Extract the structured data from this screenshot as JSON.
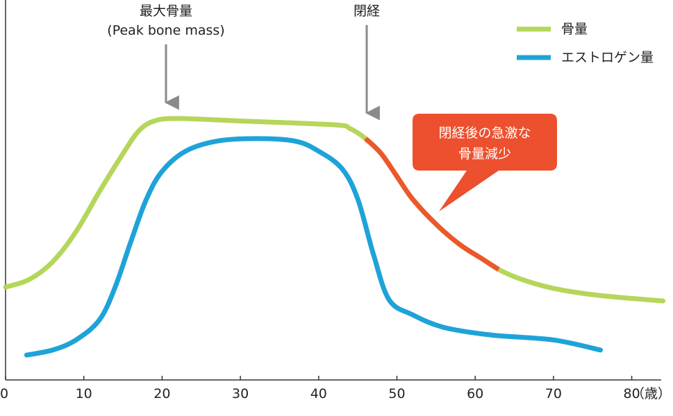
{
  "chart_data": {
    "type": "line",
    "xlabel": "",
    "ylabel": "",
    "x_unit": "（歳）",
    "xlim": [
      0,
      84
    ],
    "ylim": [
      0,
      100
    ],
    "xticks": [
      0,
      10,
      20,
      30,
      40,
      50,
      60,
      70,
      80
    ],
    "grid": false,
    "legend_position": "top-right",
    "series": [
      {
        "name": "骨量",
        "color": "#b5d65a",
        "points": [
          [
            0,
            30
          ],
          [
            3,
            33
          ],
          [
            6,
            40
          ],
          [
            9,
            52
          ],
          [
            12,
            68
          ],
          [
            15,
            83
          ],
          [
            17,
            92
          ],
          [
            19,
            96
          ],
          [
            22,
            97
          ],
          [
            30,
            96
          ],
          [
            42,
            94.5
          ],
          [
            44,
            93
          ],
          [
            46,
            89
          ],
          [
            48,
            83
          ],
          [
            50,
            74
          ],
          [
            52,
            65
          ],
          [
            55,
            55
          ],
          [
            58,
            47
          ],
          [
            61,
            41
          ],
          [
            63,
            37
          ],
          [
            66,
            33
          ],
          [
            70,
            29.5
          ],
          [
            75,
            27
          ],
          [
            80,
            25.5
          ],
          [
            84,
            24.5
          ]
        ]
      },
      {
        "name": "エストロゲン量",
        "color": "#1ea3d9",
        "points": [
          [
            2.7,
            3
          ],
          [
            6,
            5
          ],
          [
            9,
            9
          ],
          [
            12,
            17
          ],
          [
            14,
            30
          ],
          [
            16,
            48
          ],
          [
            18,
            65
          ],
          [
            20,
            76
          ],
          [
            23,
            84
          ],
          [
            27,
            88
          ],
          [
            32,
            89
          ],
          [
            37,
            88
          ],
          [
            40,
            84
          ],
          [
            43,
            77
          ],
          [
            45,
            65
          ],
          [
            47,
            43
          ],
          [
            49,
            25
          ],
          [
            52,
            19
          ],
          [
            56,
            14
          ],
          [
            62,
            11
          ],
          [
            70,
            9
          ],
          [
            76,
            5
          ]
        ]
      }
    ],
    "highlight": {
      "series": "骨量",
      "x_range": [
        46,
        63
      ],
      "color": "#ec572c"
    },
    "annotations": [
      {
        "id": "peak",
        "line1": "最大骨量",
        "line2": "(Peak bone mass)",
        "x": 20.5
      },
      {
        "id": "menopause",
        "line1": "閉経",
        "x": 46.5
      }
    ],
    "callout": {
      "line1": "閉経後の急激な",
      "line2": "骨量減少",
      "color": "#ec502e"
    }
  }
}
